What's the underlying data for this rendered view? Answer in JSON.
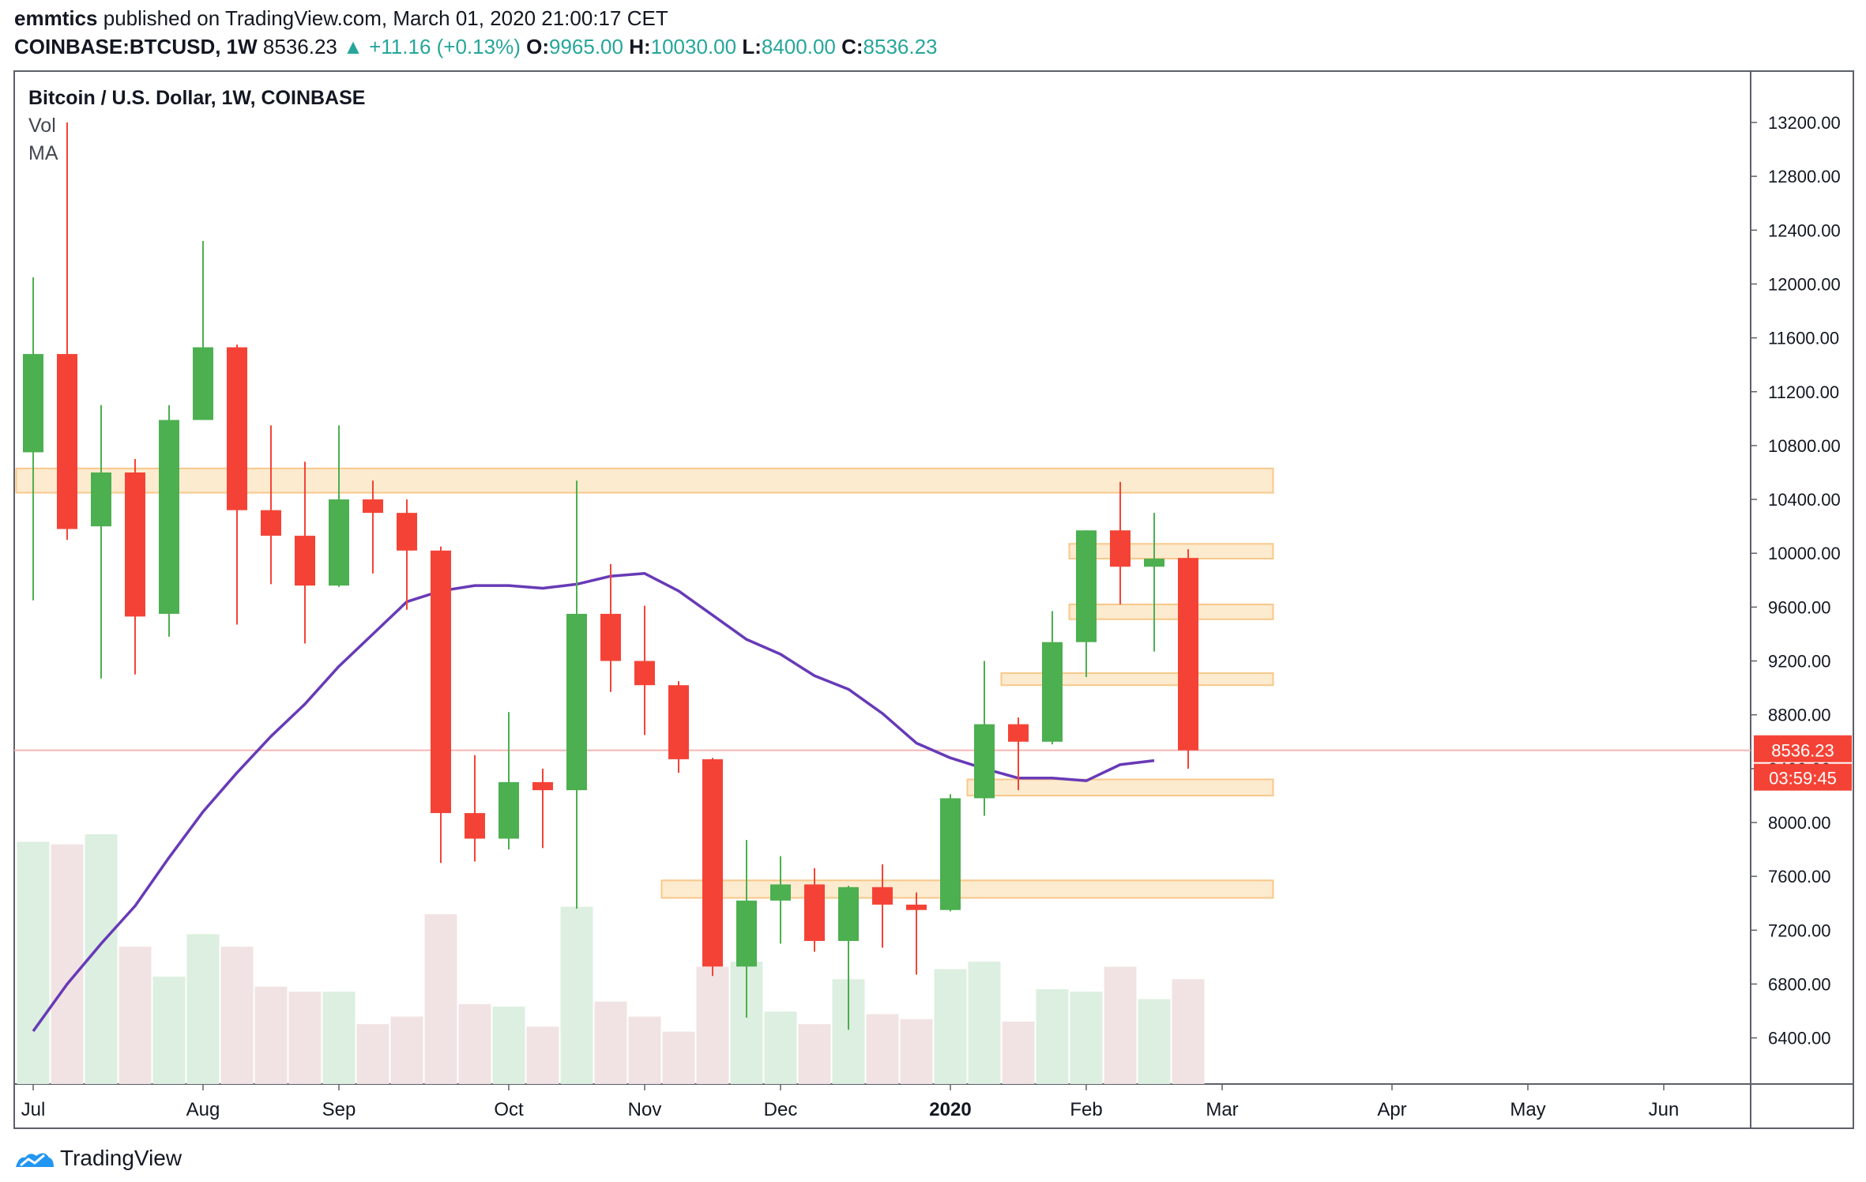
{
  "header": {
    "author": "emmtics",
    "published_text": "published on TradingView.com, March 01, 2020 21:00:17 CET",
    "symbol": "COINBASE:BTCUSD, 1W",
    "last": "8536.23",
    "change_arrow": "▲",
    "change": "+11.16 (+0.13%)",
    "o_label": "O:",
    "o_value": "9965.00",
    "h_label": "H:",
    "h_value": "10030.00",
    "l_label": "L:",
    "l_value": "8400.00",
    "c_label": "C:",
    "c_value": "8536.23"
  },
  "legend": {
    "title": "Bitcoin / U.S. Dollar, 1W, COINBASE",
    "vol": "Vol",
    "ma": "MA"
  },
  "price_tag": {
    "price": "8536.23",
    "countdown": "03:59:45"
  },
  "footer": {
    "brand": "TradingView",
    "logo_icon": "tradingview-logo-icon"
  },
  "colors": {
    "up": "#4caf50",
    "down": "#f44336",
    "ma": "#673ab7",
    "vol_up": "#dcefe0",
    "vol_down": "#f1e3e3",
    "zone_fill": "#fde7c7",
    "zone_stroke": "#f8c88a",
    "tag": "#f44336"
  },
  "chart_data": {
    "type": "candlestick",
    "title": "Bitcoin / U.S. Dollar, 1W, COINBASE",
    "ylim": [
      6000,
      13600
    ],
    "y_ticks": [
      "13200.00",
      "12800.00",
      "12400.00",
      "12000.00",
      "11600.00",
      "11200.00",
      "10800.00",
      "10400.00",
      "10000.00",
      "9600.00",
      "9200.00",
      "8800.00",
      "8400.00",
      "8000.00",
      "7600.00",
      "7200.00",
      "6800.00",
      "6400.00"
    ],
    "x_labels": [
      {
        "label": "Jul",
        "week": 0
      },
      {
        "label": "Aug",
        "week": 5
      },
      {
        "label": "Sep",
        "week": 9
      },
      {
        "label": "Oct",
        "week": 14
      },
      {
        "label": "Nov",
        "week": 18
      },
      {
        "label": "Dec",
        "week": 22
      },
      {
        "label": "2020",
        "week": 27,
        "bold": true
      },
      {
        "label": "Feb",
        "week": 31
      },
      {
        "label": "Mar",
        "week": 35
      },
      {
        "label": "Apr",
        "week": 40
      },
      {
        "label": "May",
        "week": 44
      },
      {
        "label": "Jun",
        "week": 48
      }
    ],
    "candles": [
      {
        "o": 10750,
        "h": 12050,
        "l": 9650,
        "c": 11480
      },
      {
        "o": 11480,
        "h": 13200,
        "l": 10100,
        "c": 10180
      },
      {
        "o": 10200,
        "h": 11100,
        "l": 9070,
        "c": 10600
      },
      {
        "o": 10600,
        "h": 10700,
        "l": 9100,
        "c": 9530
      },
      {
        "o": 9550,
        "h": 11100,
        "l": 9380,
        "c": 10990
      },
      {
        "o": 10990,
        "h": 12320,
        "l": 10990,
        "c": 11530
      },
      {
        "o": 11530,
        "h": 11550,
        "l": 9470,
        "c": 10320
      },
      {
        "o": 10320,
        "h": 10950,
        "l": 9770,
        "c": 10130
      },
      {
        "o": 10130,
        "h": 10680,
        "l": 9330,
        "c": 9760
      },
      {
        "o": 9760,
        "h": 10950,
        "l": 9750,
        "c": 10400
      },
      {
        "o": 10400,
        "h": 10540,
        "l": 9850,
        "c": 10300
      },
      {
        "o": 10300,
        "h": 10400,
        "l": 9580,
        "c": 10020
      },
      {
        "o": 10020,
        "h": 10050,
        "l": 7700,
        "c": 8070
      },
      {
        "o": 8070,
        "h": 8500,
        "l": 7710,
        "c": 7880
      },
      {
        "o": 7880,
        "h": 8820,
        "l": 7800,
        "c": 8300
      },
      {
        "o": 8300,
        "h": 8400,
        "l": 7810,
        "c": 8240
      },
      {
        "o": 8240,
        "h": 10540,
        "l": 7360,
        "c": 9550
      },
      {
        "o": 9550,
        "h": 9920,
        "l": 8970,
        "c": 9200
      },
      {
        "o": 9200,
        "h": 9610,
        "l": 8650,
        "c": 9020
      },
      {
        "o": 9020,
        "h": 9050,
        "l": 8370,
        "c": 8470
      },
      {
        "o": 8470,
        "h": 8480,
        "l": 6860,
        "c": 6930
      },
      {
        "o": 6930,
        "h": 7870,
        "l": 6550,
        "c": 7420
      },
      {
        "o": 7420,
        "h": 7750,
        "l": 7100,
        "c": 7540
      },
      {
        "o": 7540,
        "h": 7660,
        "l": 7040,
        "c": 7120
      },
      {
        "o": 7120,
        "h": 7530,
        "l": 6460,
        "c": 7520
      },
      {
        "o": 7520,
        "h": 7690,
        "l": 7070,
        "c": 7390
      },
      {
        "o": 7390,
        "h": 7480,
        "l": 6870,
        "c": 7350
      },
      {
        "o": 7350,
        "h": 8210,
        "l": 7340,
        "c": 8180
      },
      {
        "o": 8180,
        "h": 9200,
        "l": 8050,
        "c": 8730
      },
      {
        "o": 8730,
        "h": 8780,
        "l": 8240,
        "c": 8600
      },
      {
        "o": 8600,
        "h": 9570,
        "l": 8580,
        "c": 9340
      },
      {
        "o": 9340,
        "h": 10170,
        "l": 9080,
        "c": 10170
      },
      {
        "o": 10170,
        "h": 10530,
        "l": 9620,
        "c": 9900
      },
      {
        "o": 9900,
        "h": 10300,
        "l": 9270,
        "c": 9960
      },
      {
        "o": 9965,
        "h": 10030,
        "l": 8400,
        "c": 8536.23
      }
    ],
    "volume": [
      {
        "v": 0.97,
        "dir": "up"
      },
      {
        "v": 0.96,
        "dir": "down"
      },
      {
        "v": 1.0,
        "dir": "up"
      },
      {
        "v": 0.55,
        "dir": "down"
      },
      {
        "v": 0.43,
        "dir": "up"
      },
      {
        "v": 0.6,
        "dir": "up"
      },
      {
        "v": 0.55,
        "dir": "down"
      },
      {
        "v": 0.39,
        "dir": "down"
      },
      {
        "v": 0.37,
        "dir": "down"
      },
      {
        "v": 0.37,
        "dir": "up"
      },
      {
        "v": 0.24,
        "dir": "down"
      },
      {
        "v": 0.27,
        "dir": "down"
      },
      {
        "v": 0.68,
        "dir": "down"
      },
      {
        "v": 0.32,
        "dir": "down"
      },
      {
        "v": 0.31,
        "dir": "up"
      },
      {
        "v": 0.23,
        "dir": "down"
      },
      {
        "v": 0.71,
        "dir": "up"
      },
      {
        "v": 0.33,
        "dir": "down"
      },
      {
        "v": 0.27,
        "dir": "down"
      },
      {
        "v": 0.21,
        "dir": "down"
      },
      {
        "v": 0.47,
        "dir": "down"
      },
      {
        "v": 0.49,
        "dir": "up"
      },
      {
        "v": 0.29,
        "dir": "up"
      },
      {
        "v": 0.24,
        "dir": "down"
      },
      {
        "v": 0.42,
        "dir": "up"
      },
      {
        "v": 0.28,
        "dir": "down"
      },
      {
        "v": 0.26,
        "dir": "down"
      },
      {
        "v": 0.46,
        "dir": "up"
      },
      {
        "v": 0.49,
        "dir": "up"
      },
      {
        "v": 0.25,
        "dir": "down"
      },
      {
        "v": 0.38,
        "dir": "up"
      },
      {
        "v": 0.37,
        "dir": "up"
      },
      {
        "v": 0.47,
        "dir": "down"
      },
      {
        "v": 0.34,
        "dir": "up"
      },
      {
        "v": 0.42,
        "dir": "down"
      }
    ],
    "ma_series": [
      6450,
      6800,
      7100,
      7380,
      7740,
      8080,
      8370,
      8640,
      8880,
      9160,
      9400,
      9640,
      9720,
      9760,
      9760,
      9740,
      9770,
      9830,
      9850,
      9720,
      9540,
      9360,
      9250,
      9090,
      8990,
      8810,
      8590,
      8480,
      8400,
      8330,
      8330,
      8310,
      8430,
      8460
    ],
    "zones": [
      {
        "y1": 10450,
        "y2": 10630,
        "w_start": -0.5,
        "w_end": 36.5
      },
      {
        "y1": 9960,
        "y2": 10070,
        "w_start": 30.5,
        "w_end": 36.5
      },
      {
        "y1": 9510,
        "y2": 9620,
        "w_start": 30.5,
        "w_end": 36.5
      },
      {
        "y1": 9020,
        "y2": 9110,
        "w_start": 28.5,
        "w_end": 36.5
      },
      {
        "y1": 8200,
        "y2": 8320,
        "w_start": 27.5,
        "w_end": 36.5
      },
      {
        "y1": 7440,
        "y2": 7570,
        "w_start": 18.5,
        "w_end": 36.5
      }
    ],
    "last_price": 8536.23
  }
}
